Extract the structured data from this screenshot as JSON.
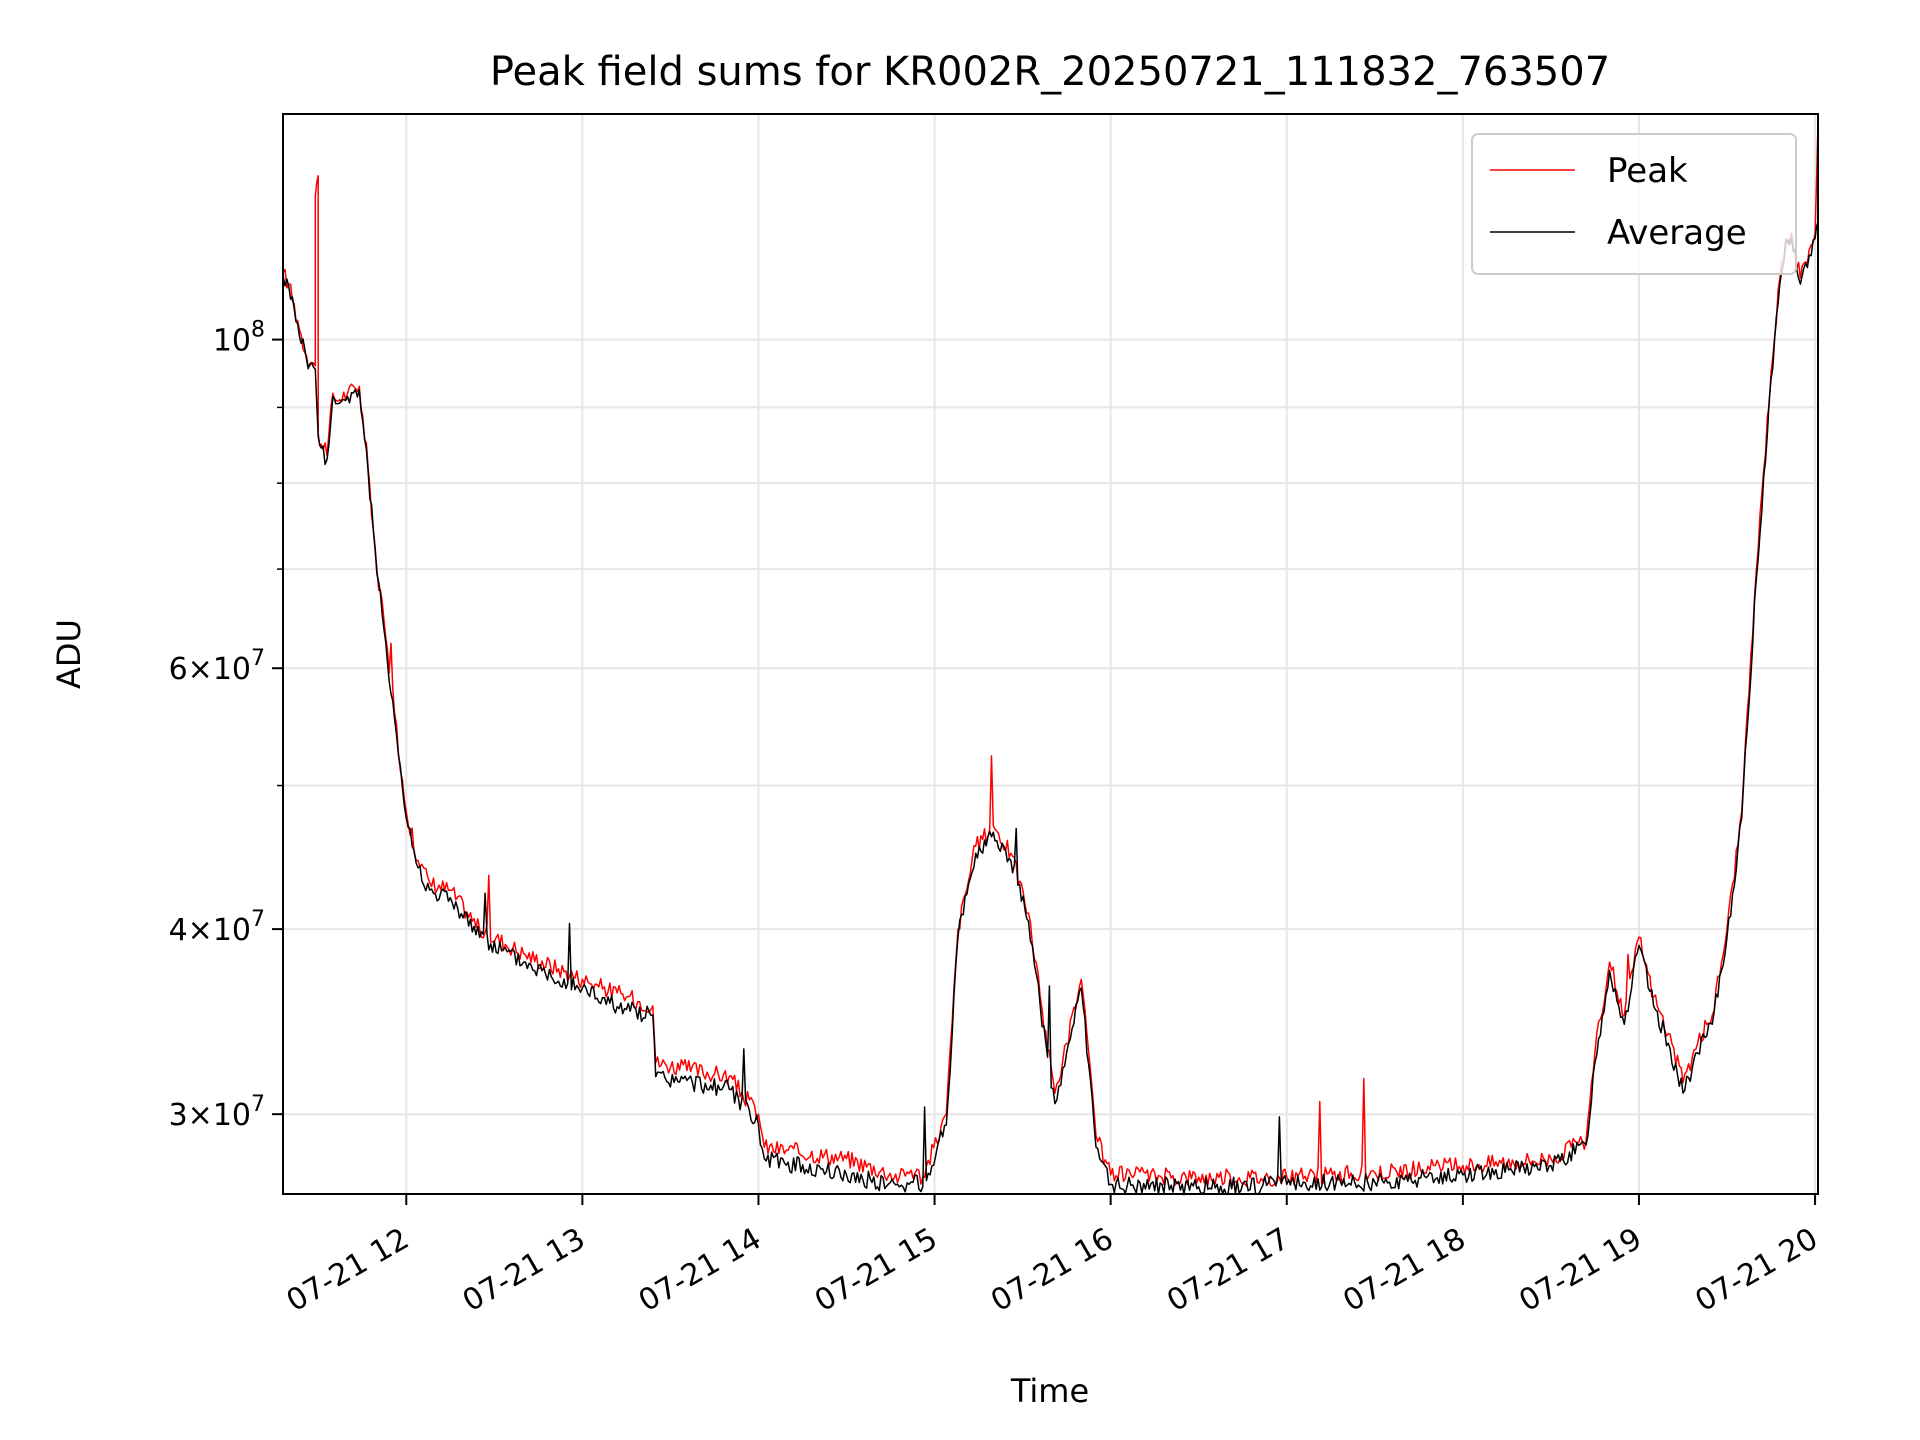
{
  "chart_data": {
    "type": "line",
    "title": "Peak field sums for KR002R_20250721_111832_763507",
    "xlabel": "Time",
    "ylabel": "ADU",
    "yscale": "log",
    "ylim": [
      26500000,
      142000000
    ],
    "xlim": [
      "07-21 11:18",
      "07-21 20:01"
    ],
    "grid": true,
    "legend_position": "top-right",
    "x_ticks": [
      "07-21 12",
      "07-21 13",
      "07-21 14",
      "07-21 15",
      "07-21 16",
      "07-21 17",
      "07-21 18",
      "07-21 19",
      "07-21 20"
    ],
    "y_major_ticks": [
      {
        "value": 30000000,
        "mant": "3",
        "exp": "7"
      },
      {
        "value": 40000000,
        "mant": "4",
        "exp": "7"
      },
      {
        "value": 60000000,
        "mant": "6",
        "exp": "7"
      },
      {
        "value": 100000000,
        "mant": "",
        "exp": "8"
      }
    ],
    "y_minor_ticks": [
      50000000,
      70000000,
      80000000,
      90000000
    ],
    "colors": {
      "peak": "#ff0000",
      "average": "#000000",
      "grid": "#e6e6e6"
    },
    "series": [
      {
        "name": "Peak",
        "color": "#ff0000",
        "x": [
          "07-21 11:18",
          "07-21 11:20",
          "07-21 11:23",
          "07-21 11:26",
          "07-21 11:29",
          "07-21 11:29",
          "07-21 11:30",
          "07-21 11:30",
          "07-21 11:31",
          "07-21 11:33",
          "07-21 11:35",
          "07-21 11:36",
          "07-21 11:40",
          "07-21 11:44",
          "07-21 11:47",
          "07-21 11:50",
          "07-21 11:53",
          "07-21 11:56",
          "07-21 12:00",
          "07-21 12:04",
          "07-21 12:08",
          "07-21 12:15",
          "07-21 12:25",
          "07-21 12:40",
          "07-21 13:00",
          "07-21 13:15",
          "07-21 13:24",
          "07-21 13:25",
          "07-21 13:50",
          "07-21 14:00",
          "07-21 14:02",
          "07-21 14:30",
          "07-21 14:48",
          "07-21 14:52",
          "07-21 14:56",
          "07-21 15:04",
          "07-21 15:08",
          "07-21 15:14",
          "07-21 15:20",
          "07-21 15:26",
          "07-21 15:32",
          "07-21 15:36",
          "07-21 15:41",
          "07-21 15:45",
          "07-21 15:50",
          "07-21 15:55",
          "07-21 16:00",
          "07-21 16:30",
          "07-21 17:00",
          "07-21 17:30",
          "07-21 18:00",
          "07-21 18:30",
          "07-21 18:42",
          "07-21 18:45",
          "07-21 18:50",
          "07-21 18:55",
          "07-21 19:00",
          "07-21 19:05",
          "07-21 19:10",
          "07-21 19:15",
          "07-21 19:20",
          "07-21 19:25",
          "07-21 19:30",
          "07-21 19:35",
          "07-21 19:40",
          "07-21 19:45",
          "07-21 19:48",
          "07-21 19:50",
          "07-21 19:52",
          "07-21 19:55",
          "07-21 19:58",
          "07-21 20:00",
          "07-21 20:01"
        ],
        "values": [
          111000000,
          109000000,
          103000000,
          97500000,
          96000000,
          125000000,
          129000000,
          86500000,
          85000000,
          83500000,
          92000000,
          91000000,
          92000000,
          93000000,
          82000000,
          70000000,
          63000000,
          56000000,
          48000000,
          44500000,
          43000000,
          42500000,
          40000000,
          38500000,
          37000000,
          36000000,
          35500000,
          32500000,
          31800000,
          30000000,
          28500000,
          28000000,
          27200000,
          27500000,
          27200000,
          30000000,
          40000000,
          45500000,
          47000000,
          45000000,
          41000000,
          36000000,
          31000000,
          33500000,
          37000000,
          29000000,
          27300000,
          27200000,
          27200000,
          27400000,
          27700000,
          28000000,
          28800000,
          33000000,
          38000000,
          35000000,
          39500000,
          36000000,
          34000000,
          31500000,
          33500000,
          35000000,
          40000000,
          48000000,
          70000000,
          95000000,
          110000000,
          117000000,
          118000000,
          110000000,
          115000000,
          118000000,
          140000000
        ]
      },
      {
        "name": "Average",
        "color": "#000000",
        "x": [
          "07-21 11:18",
          "07-21 11:20",
          "07-21 11:23",
          "07-21 11:26",
          "07-21 11:29",
          "07-21 11:30",
          "07-21 11:31",
          "07-21 11:33",
          "07-21 11:35",
          "07-21 11:36",
          "07-21 11:40",
          "07-21 11:44",
          "07-21 11:47",
          "07-21 11:50",
          "07-21 11:53",
          "07-21 11:56",
          "07-21 12:00",
          "07-21 12:04",
          "07-21 12:08",
          "07-21 12:15",
          "07-21 12:25",
          "07-21 12:40",
          "07-21 13:00",
          "07-21 13:15",
          "07-21 13:24",
          "07-21 13:25",
          "07-21 13:50",
          "07-21 14:00",
          "07-21 14:02",
          "07-21 14:30",
          "07-21 14:48",
          "07-21 14:52",
          "07-21 14:56",
          "07-21 15:04",
          "07-21 15:08",
          "07-21 15:14",
          "07-21 15:20",
          "07-21 15:26",
          "07-21 15:32",
          "07-21 15:36",
          "07-21 15:41",
          "07-21 15:45",
          "07-21 15:50",
          "07-21 15:55",
          "07-21 16:00",
          "07-21 16:30",
          "07-21 17:00",
          "07-21 17:30",
          "07-21 18:00",
          "07-21 18:30",
          "07-21 18:42",
          "07-21 18:45",
          "07-21 18:50",
          "07-21 18:55",
          "07-21 19:00",
          "07-21 19:05",
          "07-21 19:10",
          "07-21 19:15",
          "07-21 19:20",
          "07-21 19:25",
          "07-21 19:30",
          "07-21 19:35",
          "07-21 19:40",
          "07-21 19:45",
          "07-21 19:48",
          "07-21 19:50",
          "07-21 19:52",
          "07-21 19:55",
          "07-21 19:58",
          "07-21 20:00",
          "07-21 20:01"
        ],
        "values": [
          110500000,
          108500000,
          102500000,
          97000000,
          95500000,
          86000000,
          84500000,
          83000000,
          91500000,
          90500000,
          91500000,
          92500000,
          81500000,
          69500000,
          62500000,
          55500000,
          47500000,
          44000000,
          42500000,
          42000000,
          39500000,
          38000000,
          36500000,
          35300000,
          35000000,
          31800000,
          31200000,
          29500000,
          28000000,
          27300000,
          26800000,
          27000000,
          26800000,
          29500000,
          39500000,
          45000000,
          46500000,
          44500000,
          40500000,
          35500000,
          30500000,
          33000000,
          36500000,
          28500000,
          26900000,
          26800000,
          26900000,
          27000000,
          27300000,
          27700000,
          28600000,
          32500000,
          37500000,
          34500000,
          39000000,
          35500000,
          33500000,
          31000000,
          33000000,
          34500000,
          39500000,
          47500000,
          69000000,
          94000000,
          109000000,
          116000000,
          117000000,
          109000000,
          114000000,
          117000000,
          120000000
        ]
      }
    ]
  }
}
